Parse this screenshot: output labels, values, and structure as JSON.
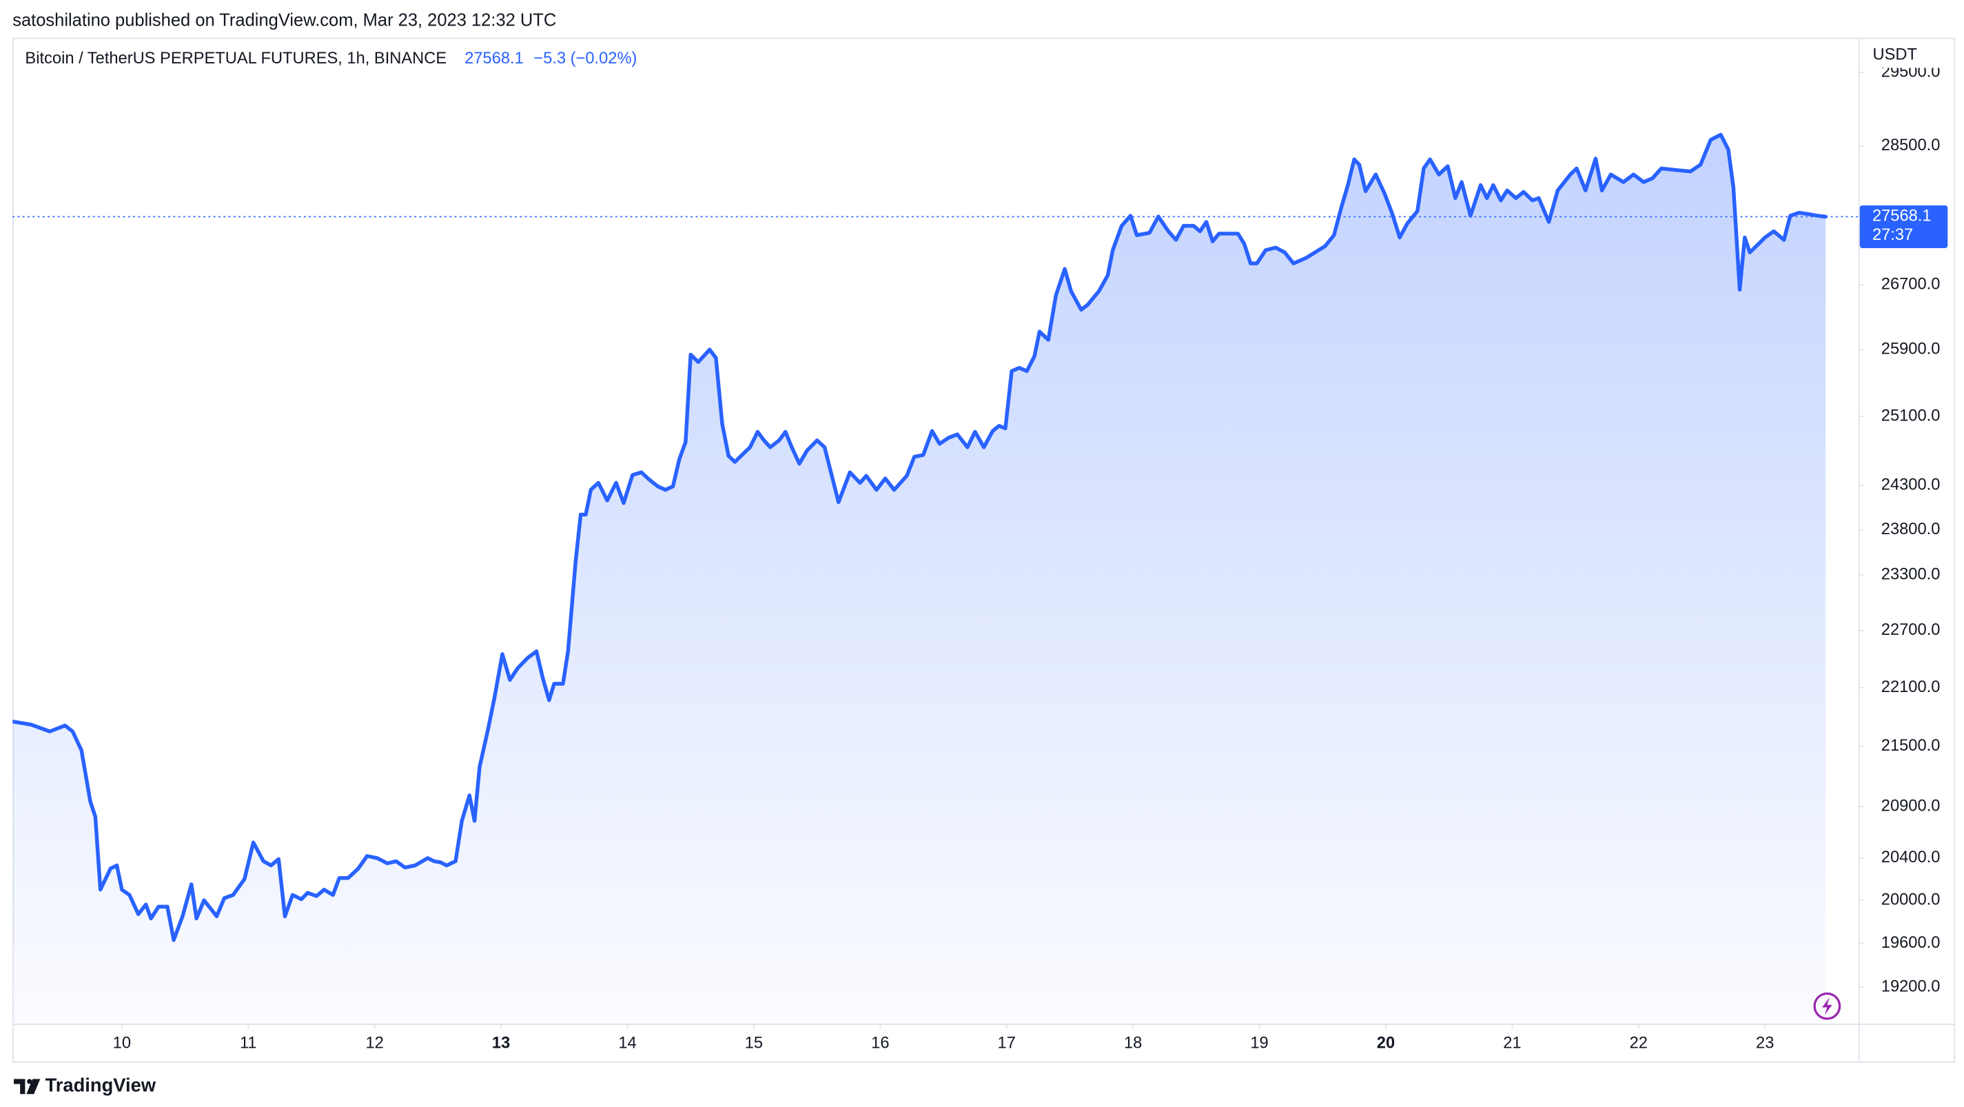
{
  "header": {
    "byline": "satoshilatino published on TradingView.com, Mar 23, 2023 12:32 UTC",
    "brand": "TradingView"
  },
  "chart_data": {
    "type": "line",
    "title": "Bitcoin / TetherUS PERPETUAL FUTURES, 1h, BINANCE",
    "last_price": 27568.1,
    "change": "−5.3 (−0.02%)",
    "countdown": "27:37",
    "currency": "USDT",
    "color": "#2962ff",
    "area": true,
    "log_scale": true,
    "price_line": true,
    "x": [
      9.14,
      9.28,
      9.43,
      9.55,
      9.61,
      9.68,
      9.75,
      9.79,
      9.83,
      9.91,
      9.96,
      10.0,
      10.06,
      10.13,
      10.19,
      10.23,
      10.29,
      10.36,
      10.41,
      10.48,
      10.55,
      10.59,
      10.65,
      10.75,
      10.81,
      10.88,
      10.97,
      11.04,
      11.12,
      11.18,
      11.24,
      11.29,
      11.35,
      11.42,
      11.47,
      11.54,
      11.6,
      11.67,
      11.72,
      11.79,
      11.87,
      11.94,
      12.02,
      12.1,
      12.17,
      12.24,
      12.32,
      12.42,
      12.47,
      12.52,
      12.57,
      12.64,
      12.69,
      12.75,
      12.79,
      12.83,
      12.9,
      12.95,
      13.01,
      13.07,
      13.13,
      13.21,
      13.28,
      13.33,
      13.38,
      13.42,
      13.49,
      13.53,
      13.59,
      13.63,
      13.67,
      13.71,
      13.77,
      13.84,
      13.91,
      13.97,
      14.04,
      14.11,
      14.17,
      14.24,
      14.3,
      14.36,
      14.41,
      14.46,
      14.5,
      14.56,
      14.65,
      14.7,
      14.75,
      14.8,
      14.85,
      14.92,
      14.97,
      15.03,
      15.08,
      15.13,
      15.2,
      15.25,
      15.3,
      15.36,
      15.42,
      15.5,
      15.56,
      15.61,
      15.67,
      15.76,
      15.84,
      15.89,
      15.97,
      16.04,
      16.11,
      16.21,
      16.27,
      16.34,
      16.41,
      16.47,
      16.54,
      16.61,
      16.69,
      16.75,
      16.82,
      16.89,
      16.94,
      16.99,
      17.04,
      17.1,
      17.16,
      17.22,
      17.26,
      17.33,
      17.39,
      17.46,
      17.51,
      17.59,
      17.64,
      17.73,
      17.8,
      17.84,
      17.91,
      17.98,
      18.03,
      18.13,
      18.2,
      18.28,
      18.34,
      18.4,
      18.48,
      18.53,
      18.58,
      18.63,
      18.68,
      18.83,
      18.88,
      18.93,
      18.98,
      19.05,
      19.13,
      19.2,
      19.27,
      19.37,
      19.42,
      19.52,
      19.59,
      19.65,
      19.7,
      19.75,
      19.79,
      19.84,
      19.92,
      19.99,
      20.05,
      20.11,
      20.17,
      20.25,
      20.3,
      20.35,
      20.42,
      20.49,
      20.55,
      20.6,
      20.67,
      20.75,
      20.8,
      20.85,
      20.91,
      20.96,
      21.03,
      21.09,
      21.16,
      21.21,
      21.29,
      21.36,
      21.46,
      21.51,
      21.58,
      21.66,
      21.71,
      21.78,
      21.88,
      21.96,
      22.04,
      22.11,
      22.18,
      22.29,
      22.41,
      22.49,
      22.57,
      22.65,
      22.71,
      22.75,
      22.8,
      22.84,
      22.88,
      22.95,
      23.0,
      23.07,
      23.15,
      23.2,
      23.27,
      23.35,
      23.42,
      23.48
    ],
    "values": [
      21750,
      21720,
      21650,
      21710,
      21650,
      21460,
      20950,
      20800,
      20100,
      20300,
      20330,
      20100,
      20050,
      19870,
      19960,
      19830,
      19940,
      19940,
      19630,
      19850,
      20150,
      19830,
      20000,
      19850,
      20020,
      20050,
      20200,
      20550,
      20370,
      20330,
      20390,
      19850,
      20050,
      20010,
      20070,
      20040,
      20100,
      20050,
      20210,
      20210,
      20300,
      20420,
      20400,
      20350,
      20370,
      20310,
      20330,
      20400,
      20370,
      20360,
      20330,
      20370,
      20760,
      21010,
      20760,
      21290,
      21690,
      22010,
      22450,
      22180,
      22300,
      22410,
      22480,
      22200,
      21970,
      22140,
      22140,
      22480,
      23450,
      23970,
      23970,
      24250,
      24330,
      24130,
      24330,
      24100,
      24420,
      24450,
      24370,
      24290,
      24250,
      24290,
      24600,
      24800,
      25840,
      25750,
      25900,
      25800,
      25010,
      24640,
      24570,
      24670,
      24740,
      24920,
      24820,
      24740,
      24820,
      24920,
      24740,
      24550,
      24700,
      24820,
      24740,
      24450,
      24110,
      24450,
      24330,
      24410,
      24250,
      24380,
      24250,
      24410,
      24630,
      24650,
      24930,
      24780,
      24850,
      24890,
      24740,
      24920,
      24740,
      24930,
      24990,
      24960,
      25640,
      25680,
      25640,
      25820,
      26120,
      26020,
      26570,
      26900,
      26620,
      26390,
      26450,
      26620,
      26820,
      27140,
      27450,
      27580,
      27330,
      27360,
      27570,
      27380,
      27270,
      27450,
      27450,
      27380,
      27500,
      27250,
      27350,
      27350,
      27220,
      26970,
      26970,
      27140,
      27170,
      27110,
      26970,
      27040,
      27090,
      27190,
      27330,
      27700,
      27980,
      28320,
      28250,
      27900,
      28120,
      27870,
      27610,
      27300,
      27480,
      27640,
      28200,
      28320,
      28120,
      28230,
      27810,
      28020,
      27580,
      27980,
      27810,
      27980,
      27780,
      27910,
      27810,
      27890,
      27780,
      27810,
      27500,
      27910,
      28120,
      28200,
      27910,
      28330,
      27910,
      28120,
      28020,
      28120,
      28020,
      28070,
      28200,
      28180,
      28160,
      28250,
      28580,
      28650,
      28450,
      27950,
      26640,
      27300,
      27110,
      27220,
      27300,
      27380,
      27270,
      27580,
      27620,
      27600,
      27580,
      27568.1
    ],
    "xlim": [
      9.135,
      23.74
    ],
    "xticks": [
      10,
      11,
      12,
      13,
      14,
      15,
      16,
      17,
      18,
      19,
      20,
      21,
      22,
      23
    ],
    "bold_xticks": [
      13,
      20
    ],
    "ylim": [
      18874,
      29985
    ],
    "yticks": [
      {
        "value": 19200,
        "label": "19200.0"
      },
      {
        "value": 19600,
        "label": "19600.0"
      },
      {
        "value": 20000,
        "label": "20000.0"
      },
      {
        "value": 20400,
        "label": "20400.0"
      },
      {
        "value": 20900,
        "label": "20900.0"
      },
      {
        "value": 21500,
        "label": "21500.0"
      },
      {
        "value": 22100,
        "label": "22100.0"
      },
      {
        "value": 22700,
        "label": "22700.0"
      },
      {
        "value": 23300,
        "label": "23300.0"
      },
      {
        "value": 23800,
        "label": "23800.0"
      },
      {
        "value": 24300,
        "label": "24300.0"
      },
      {
        "value": 25100,
        "label": "25100.0"
      },
      {
        "value": 25900,
        "label": "25900.0"
      },
      {
        "value": 26700,
        "label": "26700.0"
      },
      {
        "value": 28500,
        "label": "28500.0"
      },
      {
        "value": 29500,
        "label": "29500.0"
      }
    ]
  }
}
